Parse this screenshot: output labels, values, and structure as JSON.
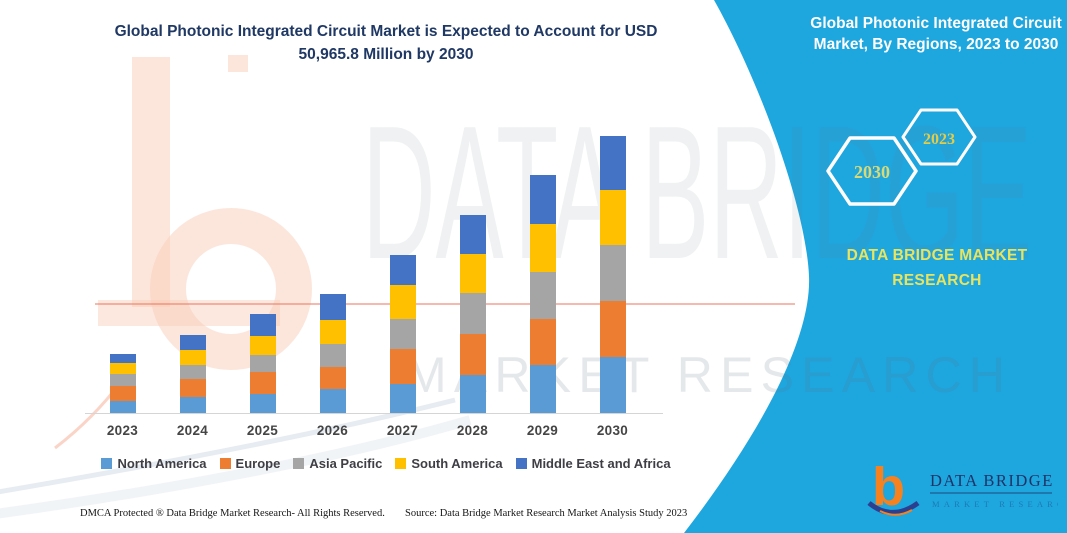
{
  "chart_title": {
    "line1": "Global Photonic Integrated Circuit Market is Expected to Account for USD",
    "line2": "50,965.8 Million by 2030"
  },
  "panel": {
    "background_color": "#1EA6DF",
    "title_line1": "Global Photonic Integrated Circuit",
    "title_line2": "Market, By Regions, 2023 to 2030",
    "hex_back_label": "2030",
    "hex_front_label": "2023",
    "brand_line1": "DATA BRIDGE MARKET",
    "brand_line2": "RESEARCH"
  },
  "logo": {
    "b_glyph": "b",
    "wordmark": "DATA BRIDGE",
    "wordmark_sub": "MARKET RESEARCH"
  },
  "watermark": {
    "big_text": "DATA BRIDGE",
    "sub_text": "MARKET RESEARCH"
  },
  "footer": {
    "left": "DMCA Protected ® Data Bridge Market Research-  All Rights Reserved.",
    "right": "Source: Data Bridge Market Research  Market Analysis Study 2023"
  },
  "chart_data": {
    "type": "bar",
    "stacked": true,
    "unit": "USD Million",
    "title": "Global Photonic Integrated Circuit Market, By Regions, 2023 to 2030",
    "categories": [
      "2023",
      "2024",
      "2025",
      "2026",
      "2027",
      "2028",
      "2029",
      "2030"
    ],
    "series": [
      {
        "name": "North America",
        "color": "#5B9BD5",
        "values": [
          2150,
          2950,
          3430,
          4450,
          5390,
          6920,
          8760,
          10200
        ]
      },
      {
        "name": "Europe",
        "color": "#ED7D31",
        "values": [
          2800,
          3360,
          4100,
          3980,
          6430,
          7660,
          8450,
          10350
        ]
      },
      {
        "name": "Asia Pacific",
        "color": "#A5A5A5",
        "values": [
          2150,
          2450,
          3060,
          4160,
          5510,
          7470,
          8700,
          10300
        ]
      },
      {
        "name": "South America",
        "color": "#FFC000",
        "values": [
          2080,
          2760,
          3490,
          4410,
          6120,
          7230,
          8880,
          10100
        ]
      },
      {
        "name": "Middle East and Africa",
        "color": "#4472C4",
        "values": [
          1720,
          2820,
          4100,
          4840,
          5570,
          7040,
          8940,
          10015.8
        ]
      }
    ],
    "totals": [
      10900,
      14340,
      18180,
      21840,
      29020,
      36320,
      43730,
      50965.8
    ],
    "labeled_value_2030_total": 50965.8,
    "values_estimated_from_pixels": true,
    "y_axis_hidden": true,
    "grid": false,
    "legend_position": "bottom"
  }
}
